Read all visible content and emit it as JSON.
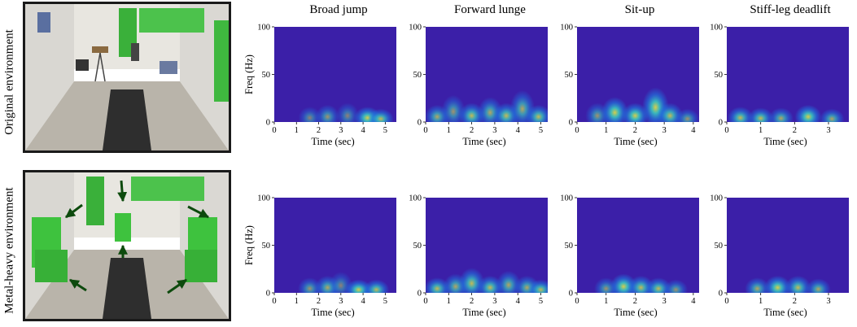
{
  "rows": [
    {
      "label": "Original environment"
    },
    {
      "label": "Metal-heavy environment"
    }
  ],
  "columns": [
    "Broad jump",
    "Forward lunge",
    "Sit-up",
    "Stiff-leg deadlift"
  ],
  "colors": {
    "spectrogram_background": "#3b1fa8",
    "low_energy": "#1f77e0",
    "mid_energy": "#3ad0c0",
    "high_energy": "#e8e040",
    "metal_objects": "#3ec23e",
    "arrows": "#0d4a0d"
  },
  "chart_data": [
    {
      "type": "heatmap",
      "row": "Original environment",
      "title": "Broad jump",
      "xlabel": "Time (sec)",
      "ylabel": "Freq (Hz)",
      "xlim": [
        0,
        5.5
      ],
      "ylim": [
        0,
        100
      ],
      "xticks": [
        0,
        1,
        2,
        3,
        4,
        5
      ],
      "yticks": [
        0,
        50,
        100
      ],
      "energy_blobs": [
        {
          "t": 1.6,
          "f": 8,
          "level": 0.5
        },
        {
          "t": 2.4,
          "f": 10,
          "level": 0.6
        },
        {
          "t": 3.3,
          "f": 12,
          "level": 0.5
        },
        {
          "t": 4.2,
          "f": 8,
          "level": 0.9
        },
        {
          "t": 4.8,
          "f": 6,
          "level": 0.8
        }
      ]
    },
    {
      "type": "heatmap",
      "row": "Original environment",
      "title": "Forward lunge",
      "xlabel": "Time (sec)",
      "ylabel": "Freq (Hz)",
      "xlim": [
        0,
        5.3
      ],
      "ylim": [
        0,
        100
      ],
      "xticks": [
        0,
        1,
        2,
        3,
        4,
        5
      ],
      "yticks": [
        0,
        50,
        100
      ],
      "energy_blobs": [
        {
          "t": 0.5,
          "f": 10,
          "level": 0.7
        },
        {
          "t": 1.2,
          "f": 20,
          "level": 0.6
        },
        {
          "t": 2.0,
          "f": 12,
          "level": 0.8
        },
        {
          "t": 2.8,
          "f": 18,
          "level": 0.7
        },
        {
          "t": 3.5,
          "f": 12,
          "level": 0.8
        },
        {
          "t": 4.2,
          "f": 25,
          "level": 0.7
        },
        {
          "t": 4.9,
          "f": 10,
          "level": 0.8
        }
      ]
    },
    {
      "type": "heatmap",
      "row": "Original environment",
      "title": "Sit-up",
      "xlabel": "Time (sec)",
      "ylabel": "Freq (Hz)",
      "xlim": [
        0,
        4.2
      ],
      "ylim": [
        0,
        100
      ],
      "xticks": [
        0,
        1,
        2,
        3,
        4
      ],
      "yticks": [
        0,
        50,
        100
      ],
      "energy_blobs": [
        {
          "t": 0.7,
          "f": 12,
          "level": 0.6
        },
        {
          "t": 1.3,
          "f": 18,
          "level": 0.9
        },
        {
          "t": 2.0,
          "f": 12,
          "level": 0.9
        },
        {
          "t": 2.7,
          "f": 28,
          "level": 0.9
        },
        {
          "t": 3.2,
          "f": 12,
          "level": 0.8
        },
        {
          "t": 3.8,
          "f": 6,
          "level": 0.6
        }
      ]
    },
    {
      "type": "heatmap",
      "row": "Original environment",
      "title": "Stiff-leg deadlift",
      "xlabel": "Time (sec)",
      "ylabel": "Freq (Hz)",
      "xlim": [
        0,
        3.6
      ],
      "ylim": [
        0,
        100
      ],
      "xticks": [
        0,
        1,
        2,
        3
      ],
      "yticks": [
        0,
        50,
        100
      ],
      "energy_blobs": [
        {
          "t": 0.4,
          "f": 8,
          "level": 0.8
        },
        {
          "t": 1.0,
          "f": 7,
          "level": 0.8
        },
        {
          "t": 1.6,
          "f": 7,
          "level": 0.7
        },
        {
          "t": 2.4,
          "f": 10,
          "level": 0.9
        },
        {
          "t": 3.1,
          "f": 6,
          "level": 0.7
        }
      ]
    },
    {
      "type": "heatmap",
      "row": "Metal-heavy environment",
      "title": "Broad jump",
      "xlabel": "Time (sec)",
      "ylabel": "Freq (Hz)",
      "xlim": [
        0,
        5.5
      ],
      "ylim": [
        0,
        100
      ],
      "xticks": [
        0,
        1,
        2,
        3,
        4,
        5
      ],
      "yticks": [
        0,
        50,
        100
      ],
      "energy_blobs": [
        {
          "t": 1.6,
          "f": 8,
          "level": 0.6
        },
        {
          "t": 2.4,
          "f": 10,
          "level": 0.7
        },
        {
          "t": 3.0,
          "f": 14,
          "level": 0.5
        },
        {
          "t": 3.8,
          "f": 6,
          "level": 0.9
        },
        {
          "t": 4.6,
          "f": 6,
          "level": 0.8
        }
      ]
    },
    {
      "type": "heatmap",
      "row": "Metal-heavy environment",
      "title": "Forward lunge",
      "xlabel": "Time (sec)",
      "ylabel": "Freq (Hz)",
      "xlim": [
        0,
        5.3
      ],
      "ylim": [
        0,
        100
      ],
      "xticks": [
        0,
        1,
        2,
        3,
        4,
        5
      ],
      "yticks": [
        0,
        50,
        100
      ],
      "energy_blobs": [
        {
          "t": 0.5,
          "f": 8,
          "level": 0.8
        },
        {
          "t": 1.3,
          "f": 12,
          "level": 0.7
        },
        {
          "t": 2.0,
          "f": 18,
          "level": 0.8
        },
        {
          "t": 2.8,
          "f": 10,
          "level": 0.8
        },
        {
          "t": 3.6,
          "f": 15,
          "level": 0.7
        },
        {
          "t": 4.4,
          "f": 10,
          "level": 0.7
        },
        {
          "t": 5.0,
          "f": 6,
          "level": 0.8
        }
      ]
    },
    {
      "type": "heatmap",
      "row": "Metal-heavy environment",
      "title": "Sit-up",
      "xlabel": "Time (sec)",
      "ylabel": "Freq (Hz)",
      "xlim": [
        0,
        4.2
      ],
      "ylim": [
        0,
        100
      ],
      "xticks": [
        0,
        1,
        2,
        3,
        4
      ],
      "yticks": [
        0,
        50,
        100
      ],
      "energy_blobs": [
        {
          "t": 1.0,
          "f": 8,
          "level": 0.6
        },
        {
          "t": 1.6,
          "f": 12,
          "level": 0.9
        },
        {
          "t": 2.2,
          "f": 10,
          "level": 0.8
        },
        {
          "t": 2.8,
          "f": 8,
          "level": 0.8
        },
        {
          "t": 3.4,
          "f": 6,
          "level": 0.6
        }
      ]
    },
    {
      "type": "heatmap",
      "row": "Metal-heavy environment",
      "title": "Stiff-leg deadlift",
      "xlabel": "Time (sec)",
      "ylabel": "Freq (Hz)",
      "xlim": [
        0,
        3.6
      ],
      "ylim": [
        0,
        100
      ],
      "xticks": [
        0,
        1,
        2,
        3
      ],
      "yticks": [
        0,
        50,
        100
      ],
      "energy_blobs": [
        {
          "t": 0.9,
          "f": 8,
          "level": 0.7
        },
        {
          "t": 1.5,
          "f": 10,
          "level": 0.9
        },
        {
          "t": 2.1,
          "f": 10,
          "level": 0.8
        },
        {
          "t": 2.7,
          "f": 7,
          "level": 0.7
        }
      ]
    }
  ]
}
